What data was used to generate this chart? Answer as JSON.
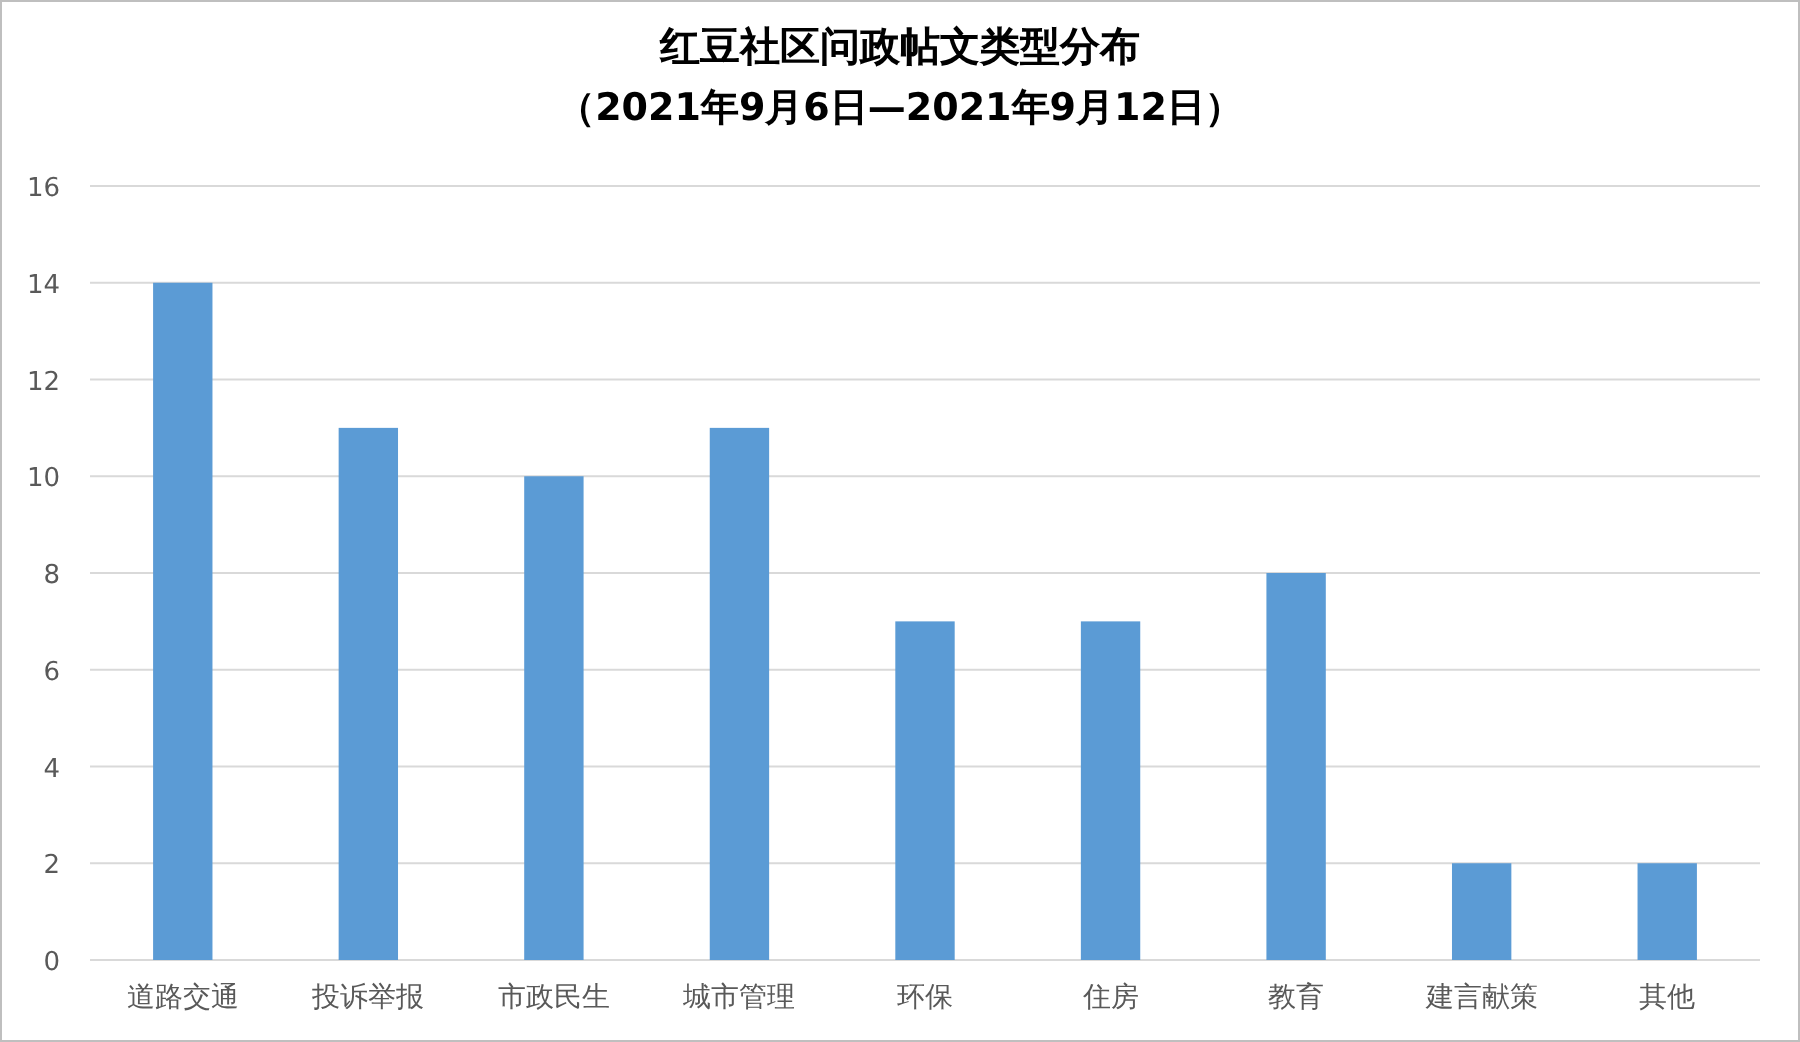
{
  "chart_data": {
    "type": "bar",
    "title": "红豆社区问政帖文类型分布",
    "subtitle": "（2021年9月6日—2021年9月12日）",
    "categories": [
      "道路交通",
      "投诉举报",
      "市政民生",
      "城市管理",
      "环保",
      "住房",
      "教育",
      "建言献策",
      "其他"
    ],
    "values": [
      14,
      11,
      10,
      11,
      7,
      7,
      8,
      2,
      2
    ],
    "color": "#5b9bd5",
    "ylim": [
      0,
      16
    ],
    "yticks": [
      0,
      2,
      4,
      6,
      8,
      10,
      12,
      14,
      16
    ],
    "grid": "y"
  }
}
